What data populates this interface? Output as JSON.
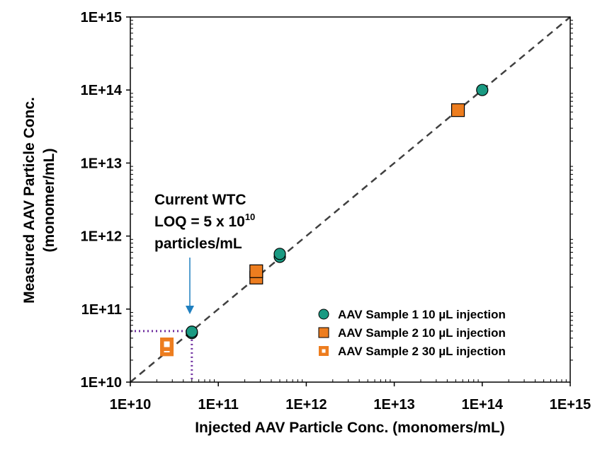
{
  "chart_data": {
    "type": "scatter",
    "x_scale": "log",
    "y_scale": "log",
    "xlim": [
      10000000000.0,
      1000000000000000.0
    ],
    "ylim": [
      10000000000.0,
      1000000000000000.0
    ],
    "grid": false,
    "legend_position": "bottom-right",
    "xlabel": "Injected AAV Particle Conc. (monomers/mL)",
    "ylabel_line1": "Measured AAV Particle Conc.",
    "ylabel_line2": "(monomer/mL)",
    "x_ticks": [
      "1E+10",
      "1E+11",
      "1E+12",
      "1E+13",
      "1E+14",
      "1E+15"
    ],
    "y_ticks": [
      "1E+10",
      "1E+11",
      "1E+12",
      "1E+13",
      "1E+14",
      "1E+15"
    ],
    "tick_values": [
      10000000000.0,
      100000000000.0,
      1000000000000.0,
      10000000000000.0,
      100000000000000.0,
      1000000000000000.0
    ],
    "identity_line": {
      "from": [
        10000000000.0,
        10000000000.0
      ],
      "to": [
        1000000000000000.0,
        1000000000000000.0
      ],
      "style": "dashed",
      "color": "#404040"
    },
    "loq_value": 50000000000.0,
    "loq_guide_color": "#7030a0",
    "annotation": {
      "line1": "Current WTC",
      "line2_prefix": "LOQ = 5 x 10",
      "line2_sup": "10",
      "line3": "particles/mL",
      "arrow_color": "#1f7fbf"
    },
    "series": [
      {
        "name": "AAV Sample 1 10 µL injection",
        "marker": "circle",
        "fill": "#1a9a82",
        "stroke": "#000000",
        "points": [
          {
            "x": 50000000000.0,
            "y": 47000000000.0
          },
          {
            "x": 50000000000.0,
            "y": 49000000000.0
          },
          {
            "x": 500000000000.0,
            "y": 520000000000.0
          },
          {
            "x": 500000000000.0,
            "y": 570000000000.0
          },
          {
            "x": 100000000000000.0,
            "y": 100000000000000.0
          }
        ]
      },
      {
        "name": "AAV Sample 2 10 µL injection",
        "marker": "square",
        "fill": "#ed7d1f",
        "stroke": "#000000",
        "points": [
          {
            "x": 270000000000.0,
            "y": 270000000000.0
          },
          {
            "x": 270000000000.0,
            "y": 330000000000.0
          },
          {
            "x": 53000000000000.0,
            "y": 53000000000000.0
          }
        ]
      },
      {
        "name": "AAV Sample 2 30 µL injection",
        "marker": "square-hollow",
        "fill": "#ed7d1f",
        "stroke": "#ed7d1f",
        "points": [
          {
            "x": 26000000000.0,
            "y": 28000000000.0
          },
          {
            "x": 26000000000.0,
            "y": 33000000000.0
          }
        ]
      }
    ]
  }
}
